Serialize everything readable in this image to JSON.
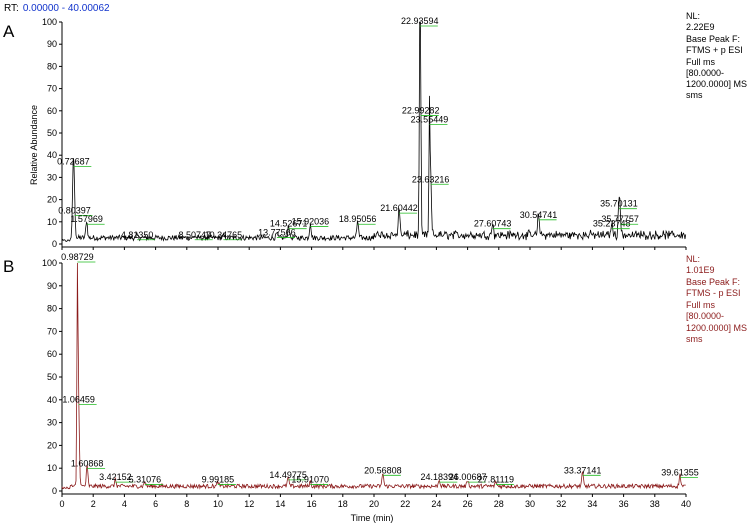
{
  "header": {
    "rt_label": "RT:",
    "rt_range": "0.00000 - 40.00062"
  },
  "colors": {
    "blue": "#1133cc",
    "trace_a": "#000000",
    "trace_b": "#8b1a1a",
    "peak_marker": "#22bb22"
  },
  "chart_data": {
    "type": "line",
    "xlabel": "Time (min)",
    "xlim": [
      0,
      40
    ],
    "xticks": [
      "0",
      "2",
      "4",
      "6",
      "8",
      "10",
      "12",
      "14",
      "16",
      "18",
      "20",
      "22",
      "24",
      "26",
      "28",
      "30",
      "32",
      "34",
      "36",
      "38",
      "40"
    ],
    "panels": [
      {
        "panel_label": "A",
        "ylabel": "Relative Abundance",
        "ylim": [
          0,
          100
        ],
        "yticks": [
          "0",
          "10",
          "20",
          "30",
          "40",
          "50",
          "60",
          "70",
          "80",
          "90",
          "100"
        ],
        "info": [
          "NL:",
          "2.22E9",
          "Base Peak F:",
          "FTMS + p ESI",
          "Full ms",
          "[80.0000-",
          "1200.0000]  MS",
          "sms"
        ],
        "peaks": [
          {
            "rt": 0.72687,
            "label": "0.72687",
            "height": 34
          },
          {
            "rt": 0.80397,
            "label": "0.80397",
            "height": 12
          },
          {
            "rt": 1.57969,
            "label": "1.57969",
            "height": 8
          },
          {
            "rt": 4.8135,
            "label": "4.81350",
            "height": 1
          },
          {
            "rt": 8.50747,
            "label": "8.50747",
            "height": 1
          },
          {
            "rt": 10.34765,
            "label": "10.34765",
            "height": 1
          },
          {
            "rt": 13.77566,
            "label": "13.77566",
            "height": 2
          },
          {
            "rt": 14.52671,
            "label": "14.52671",
            "height": 6
          },
          {
            "rt": 15.92036,
            "label": "15.92036",
            "height": 7
          },
          {
            "rt": 18.95056,
            "label": "18.95056",
            "height": 8
          },
          {
            "rt": 21.60442,
            "label": "21.60442",
            "height": 13
          },
          {
            "rt": 22.93594,
            "label": "22.93594",
            "height": 100
          },
          {
            "rt": 22.99282,
            "label": "22.99282",
            "height": 57
          },
          {
            "rt": 23.55449,
            "label": "23.55449",
            "height": 53
          },
          {
            "rt": 23.63216,
            "label": "23.63216",
            "height": 26
          },
          {
            "rt": 27.60743,
            "label": "27.60743",
            "height": 6
          },
          {
            "rt": 30.54741,
            "label": "30.54741",
            "height": 10
          },
          {
            "rt": 35.23748,
            "label": "35.23748",
            "height": 6
          },
          {
            "rt": 35.70131,
            "label": "35.70131",
            "height": 15
          },
          {
            "rt": 35.77757,
            "label": "35.77757",
            "height": 8
          }
        ]
      },
      {
        "panel_label": "B",
        "ylabel": "",
        "ylim": [
          0,
          100
        ],
        "yticks": [
          "0",
          "10",
          "20",
          "30",
          "40",
          "50",
          "60",
          "70",
          "80",
          "90",
          "100"
        ],
        "info": [
          "NL:",
          "1.01E9",
          "Base Peak F:",
          "FTMS - p ESI",
          "Full ms",
          "[80.0000-",
          "1200.0000]  MS",
          "sms"
        ],
        "peaks": [
          {
            "rt": 0.98729,
            "label": "0.98729",
            "height": 100
          },
          {
            "rt": 1.06459,
            "label": "1.06459",
            "height": 37
          },
          {
            "rt": 1.60868,
            "label": "1.60868",
            "height": 9
          },
          {
            "rt": 3.42152,
            "label": "3.42152",
            "height": 3
          },
          {
            "rt": 5.31076,
            "label": "5.31076",
            "height": 2
          },
          {
            "rt": 9.99185,
            "label": "9.99185",
            "height": 2
          },
          {
            "rt": 14.49775,
            "label": "14.49775",
            "height": 4
          },
          {
            "rt": 15.9107,
            "label": "15.91070",
            "height": 2
          },
          {
            "rt": 20.56808,
            "label": "20.56808",
            "height": 6
          },
          {
            "rt": 24.18394,
            "label": "24.18394",
            "height": 3
          },
          {
            "rt": 26.00687,
            "label": "26.00687",
            "height": 3
          },
          {
            "rt": 27.81119,
            "label": "27.81119",
            "height": 2
          },
          {
            "rt": 33.37141,
            "label": "33.37141",
            "height": 6
          },
          {
            "rt": 39.61355,
            "label": "39.61355",
            "height": 5
          }
        ]
      }
    ]
  }
}
